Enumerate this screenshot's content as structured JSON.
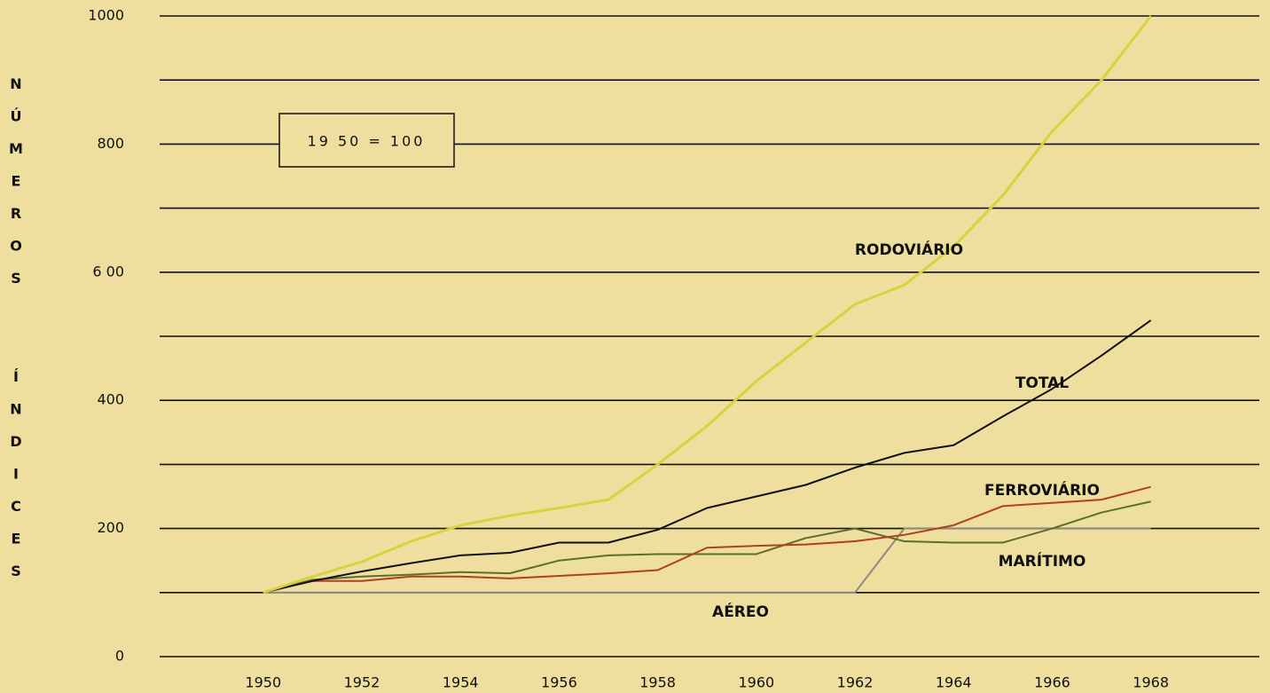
{
  "chart_data": {
    "type": "line",
    "y_label": [
      "NÚMEROS",
      "ÍNDICES"
    ],
    "annotation": "19 50 = 100",
    "x": [
      1950,
      1951,
      1952,
      1953,
      1954,
      1955,
      1956,
      1957,
      1958,
      1959,
      1960,
      1961,
      1962,
      1963,
      1964,
      1965,
      1966,
      1967,
      1968
    ],
    "xlim": [
      1947.9,
      1970.2
    ],
    "xticks": [
      1950,
      1952,
      1954,
      1956,
      1958,
      1960,
      1962,
      1964,
      1966,
      1968
    ],
    "ylim": [
      0,
      1000
    ],
    "yticks": [
      0,
      200,
      400,
      {
        "value": 600,
        "label": "6 00"
      },
      800,
      1000
    ],
    "minor_yticks": [
      100,
      300,
      500,
      700,
      900
    ],
    "grid": true,
    "series": [
      {
        "name": "RODOVIÁRIO",
        "color": "#d9d23f",
        "values": [
          100,
          125,
          148,
          180,
          205,
          220,
          232,
          245,
          300,
          360,
          430,
          490,
          550,
          580,
          640,
          720,
          820,
          900,
          1000
        ]
      },
      {
        "name": "TOTAL",
        "color": "#111111",
        "values": [
          100,
          118,
          133,
          146,
          158,
          162,
          178,
          178,
          198,
          232,
          250,
          268,
          295,
          318,
          330,
          375,
          418,
          470,
          525
        ]
      },
      {
        "name": "FERROVIÁRIO",
        "color": "#b0401e",
        "values": [
          100,
          118,
          118,
          125,
          125,
          122,
          126,
          130,
          135,
          170,
          173,
          175,
          180,
          190,
          205,
          235,
          240,
          245,
          265
        ]
      },
      {
        "name": "MARÍTIMO",
        "color": "#5b6e2e",
        "values": [
          100,
          120,
          125,
          128,
          132,
          130,
          150,
          158,
          160,
          160,
          160,
          185,
          200,
          180,
          178,
          178,
          200,
          225,
          242
        ]
      },
      {
        "name": "AÉREO",
        "color": "#8a8a80",
        "values": [
          100,
          100,
          100,
          100,
          100,
          100,
          100,
          100,
          100,
          100,
          100,
          100,
          100,
          200,
          200,
          200,
          200,
          200,
          200
        ]
      }
    ]
  }
}
